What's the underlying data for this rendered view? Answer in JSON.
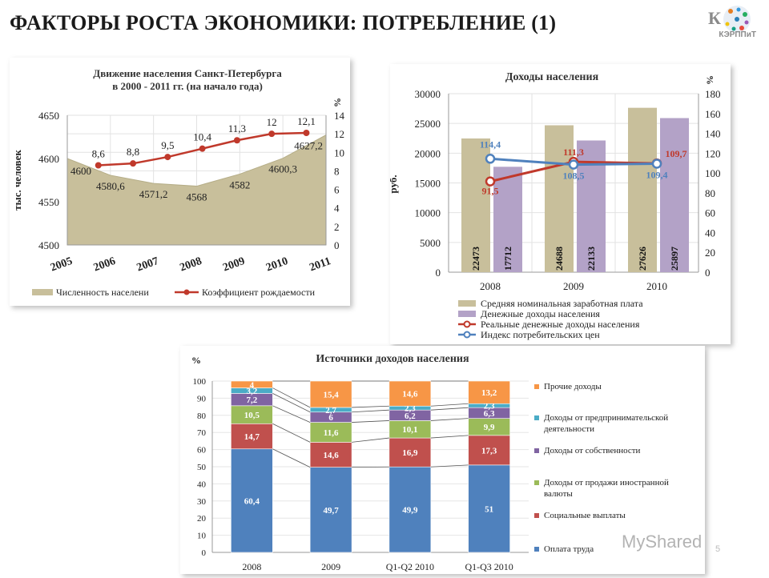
{
  "slide": {
    "title": "ФАКТОРЫ РОСТА ЭКОНОМИКИ: ПОТРЕБЛЕНИЕ (1)",
    "logo_text": "КЭРППиТ",
    "watermark": "MyShared",
    "page_number": "5"
  },
  "chart_data": [
    {
      "type": "area",
      "title": "Движение населения Санкт-Петербурга в 2000 - 2011 гг. (на начало года)",
      "ylabel": "тыс. человек",
      "y2label": "%",
      "ylim": [
        4500,
        4650
      ],
      "y2lim": [
        0,
        14
      ],
      "yticks": [
        "4500",
        "4550",
        "4600",
        "4650"
      ],
      "y2ticks": [
        "0",
        "2",
        "4",
        "6",
        "8",
        "10",
        "12",
        "14"
      ],
      "categories": [
        "2005",
        "2006",
        "2007",
        "2008",
        "2009",
        "2010",
        "2011"
      ],
      "series": [
        {
          "name": "Численность населени",
          "kind": "area",
          "color": "#c8bf9b",
          "values": [
            4600,
            4580.6,
            4571.2,
            4568,
            4582,
            4600.3,
            4627.2
          ],
          "labels": [
            "4600",
            "4580,6",
            "4571,2",
            "4568",
            "4582",
            "4600,3",
            "4627,2"
          ]
        },
        {
          "name": "Коэффициент рождаемости",
          "kind": "line",
          "axis": "right",
          "color": "#c0392b",
          "x_positions": [
            1,
            2,
            3,
            4,
            5,
            6,
            7
          ],
          "values": [
            8.6,
            8.8,
            9.5,
            10.4,
            11.3,
            12,
            12.1
          ],
          "labels": [
            "8,6",
            "8,8",
            "9,5",
            "10,4",
            "11,3",
            "12",
            "12,1"
          ]
        }
      ],
      "grid": true,
      "legend": "bottom"
    },
    {
      "type": "bar",
      "title": "Доходы населения",
      "ylabel": "руб.",
      "y2label": "%",
      "ylim": [
        0,
        30000
      ],
      "y2lim": [
        0,
        180
      ],
      "yticks": [
        "0",
        "5000",
        "10000",
        "15000",
        "20000",
        "25000",
        "30000"
      ],
      "y2ticks": [
        "0",
        "20",
        "40",
        "60",
        "80",
        "100",
        "120",
        "140",
        "160",
        "180"
      ],
      "categories": [
        "2008",
        "2009",
        "2010"
      ],
      "series": [
        {
          "name": "Средняя номинальная заработная плата",
          "kind": "bar",
          "color": "#c8bf9b",
          "values": [
            22473,
            24688,
            27626
          ]
        },
        {
          "name": "Денежные доходы населения",
          "kind": "bar",
          "color": "#b3a2c7",
          "values": [
            17712,
            22133,
            25897
          ]
        },
        {
          "name": "Реальные денежные доходы населения",
          "kind": "line",
          "axis": "right",
          "color": "#c0392b",
          "values": [
            91.5,
            111.3,
            109.7
          ],
          "labels": [
            "91,5",
            "111,3",
            "109,7"
          ]
        },
        {
          "name": "Индекс потребительских цен",
          "kind": "line",
          "axis": "right",
          "color": "#4f81bd",
          "values": [
            114.4,
            108.5,
            109.4
          ],
          "labels": [
            "114,4",
            "108,5",
            "109,4"
          ]
        }
      ],
      "grid": true,
      "legend": "bottom"
    },
    {
      "type": "bar",
      "stacked": true,
      "title": "Источники доходов населения",
      "ylabel": "%",
      "ylim": [
        0,
        100
      ],
      "yticks": [
        "0",
        "10",
        "20",
        "30",
        "40",
        "50",
        "60",
        "70",
        "80",
        "90",
        "100"
      ],
      "categories": [
        "2008",
        "2009",
        "Q1-Q2 2010",
        "Q1-Q3 2010"
      ],
      "series": [
        {
          "name": "Оплата труда",
          "color": "#4f81bd",
          "values": [
            60.4,
            49.7,
            49.9,
            51
          ]
        },
        {
          "name": "Социальные выплаты",
          "color": "#c0504d",
          "values": [
            14.7,
            14.6,
            16.9,
            17.3
          ]
        },
        {
          "name": "Доходы от продажи иностранной валюты",
          "color": "#9bbb59",
          "values": [
            10.5,
            11.6,
            10.1,
            9.9
          ]
        },
        {
          "name": "Доходы от собственности",
          "color": "#8064a2",
          "values": [
            7.2,
            6,
            6.2,
            6.3
          ]
        },
        {
          "name": "Доходы от предпринимательской деятельности",
          "color": "#4bacc6",
          "values": [
            3.2,
            2.7,
            2.3,
            2.3
          ]
        },
        {
          "name": "Прочие доходы",
          "color": "#f79646",
          "values": [
            4,
            15.4,
            14.6,
            13.2
          ]
        }
      ],
      "grid": true,
      "legend": "right"
    }
  ]
}
